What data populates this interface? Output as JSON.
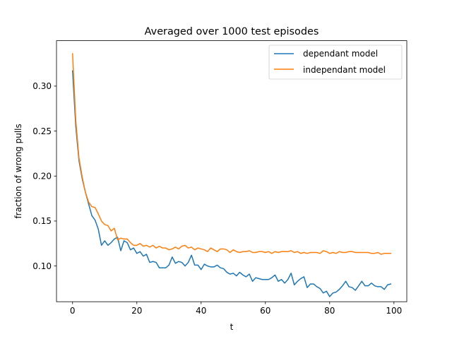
{
  "chart_data": {
    "type": "line",
    "title": "Averaged over 1000 test episodes",
    "xlabel": "t",
    "ylabel": "fraction of wrong pulls",
    "xlim": [
      -5,
      104
    ],
    "ylim": [
      0.0603,
      0.3505
    ],
    "xticks": [
      0,
      20,
      40,
      60,
      80,
      100
    ],
    "xtick_labels": [
      "0",
      "20",
      "40",
      "60",
      "80",
      "100"
    ],
    "yticks": [
      0.1,
      0.15,
      0.2,
      0.25,
      0.3
    ],
    "ytick_labels": [
      "0.10",
      "0.15",
      "0.20",
      "0.25",
      "0.30"
    ],
    "grid": false,
    "legend_position": "top-right",
    "x": [
      0,
      1,
      2,
      3,
      4,
      5,
      6,
      7,
      8,
      9,
      10,
      11,
      12,
      13,
      14,
      15,
      16,
      17,
      18,
      19,
      20,
      21,
      22,
      23,
      24,
      25,
      26,
      27,
      28,
      29,
      30,
      31,
      32,
      33,
      34,
      35,
      36,
      37,
      38,
      39,
      40,
      41,
      42,
      43,
      44,
      45,
      46,
      47,
      48,
      49,
      50,
      51,
      52,
      53,
      54,
      55,
      56,
      57,
      58,
      59,
      60,
      61,
      62,
      63,
      64,
      65,
      66,
      67,
      68,
      69,
      70,
      71,
      72,
      73,
      74,
      75,
      76,
      77,
      78,
      79,
      80,
      81,
      82,
      83,
      84,
      85,
      86,
      87,
      88,
      89,
      90,
      91,
      92,
      93,
      94,
      95,
      96,
      97,
      98,
      99
    ],
    "series": [
      {
        "name": "dependant model",
        "color": "#1f77b4",
        "values": [
          0.317,
          0.255,
          0.217,
          0.197,
          0.182,
          0.169,
          0.156,
          0.151,
          0.141,
          0.123,
          0.128,
          0.123,
          0.126,
          0.13,
          0.132,
          0.117,
          0.128,
          0.126,
          0.118,
          0.12,
          0.114,
          0.116,
          0.111,
          0.113,
          0.104,
          0.105,
          0.104,
          0.098,
          0.098,
          0.098,
          0.101,
          0.11,
          0.103,
          0.105,
          0.104,
          0.1,
          0.104,
          0.112,
          0.101,
          0.101,
          0.096,
          0.102,
          0.1,
          0.099,
          0.099,
          0.101,
          0.098,
          0.097,
          0.093,
          0.091,
          0.092,
          0.089,
          0.093,
          0.09,
          0.088,
          0.091,
          0.083,
          0.087,
          0.086,
          0.085,
          0.085,
          0.085,
          0.087,
          0.09,
          0.083,
          0.085,
          0.081,
          0.085,
          0.092,
          0.079,
          0.083,
          0.086,
          0.088,
          0.076,
          0.08,
          0.08,
          0.077,
          0.075,
          0.07,
          0.072,
          0.066,
          0.07,
          0.071,
          0.074,
          0.078,
          0.083,
          0.077,
          0.076,
          0.073,
          0.078,
          0.083,
          0.078,
          0.078,
          0.081,
          0.078,
          0.077,
          0.077,
          0.074,
          0.079,
          0.08
        ]
      },
      {
        "name": "independant model",
        "color": "#ff7f0e",
        "values": [
          0.336,
          0.262,
          0.22,
          0.199,
          0.182,
          0.171,
          0.166,
          0.165,
          0.158,
          0.15,
          0.146,
          0.145,
          0.139,
          0.142,
          0.129,
          0.131,
          0.13,
          0.13,
          0.126,
          0.123,
          0.123,
          0.125,
          0.122,
          0.123,
          0.121,
          0.123,
          0.12,
          0.122,
          0.12,
          0.12,
          0.118,
          0.119,
          0.121,
          0.119,
          0.122,
          0.123,
          0.12,
          0.121,
          0.118,
          0.12,
          0.119,
          0.118,
          0.116,
          0.12,
          0.118,
          0.116,
          0.119,
          0.119,
          0.118,
          0.115,
          0.118,
          0.116,
          0.115,
          0.116,
          0.116,
          0.117,
          0.115,
          0.115,
          0.116,
          0.116,
          0.115,
          0.116,
          0.114,
          0.116,
          0.115,
          0.116,
          0.116,
          0.116,
          0.117,
          0.115,
          0.116,
          0.114,
          0.115,
          0.114,
          0.115,
          0.115,
          0.115,
          0.114,
          0.117,
          0.116,
          0.114,
          0.115,
          0.114,
          0.116,
          0.115,
          0.115,
          0.116,
          0.116,
          0.115,
          0.115,
          0.115,
          0.115,
          0.115,
          0.114,
          0.114,
          0.115,
          0.113,
          0.114,
          0.114,
          0.114
        ]
      }
    ]
  }
}
